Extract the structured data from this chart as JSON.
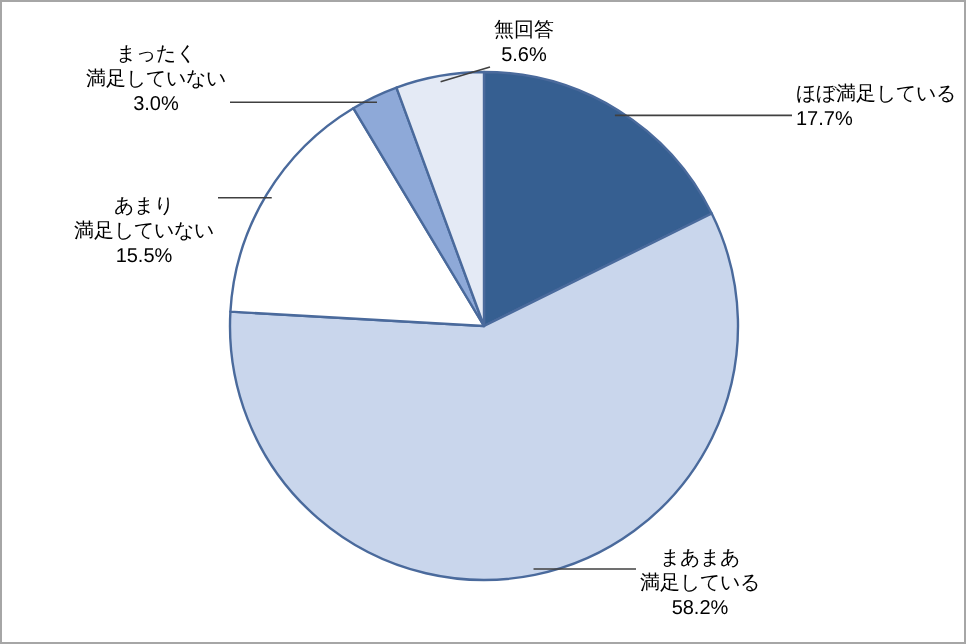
{
  "chart_data": {
    "type": "pie",
    "categories": [
      "ほぼ満足している",
      "まあまあ満足している",
      "あまり満足していない",
      "まったく満足していない",
      "無回答"
    ],
    "values": [
      17.7,
      58.2,
      15.5,
      3.0,
      5.6
    ],
    "colors": [
      "#365f91",
      "#c9d6ec",
      "#ffffff",
      "#8ea9d8",
      "#e4eaf5"
    ],
    "value_labels": [
      "17.7%",
      "58.2%",
      "15.5%",
      "3.0%",
      "5.6%"
    ]
  }
}
